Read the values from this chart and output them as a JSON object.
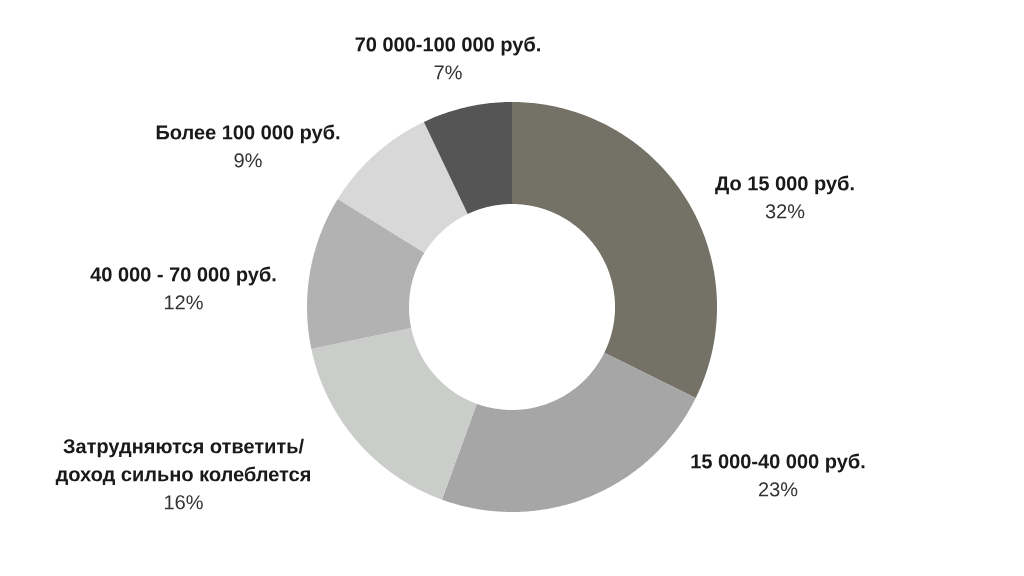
{
  "chart_data": {
    "type": "donut",
    "categories": [
      "До 15 000 руб.",
      "15 000-40 000 руб.",
      "Затрудняются ответить/ доход сильно колеблется",
      "40 000 - 70 000 руб.",
      "Более 100 000 руб.",
      "70 000-100 000 руб."
    ],
    "values": [
      32,
      23,
      16,
      12,
      9,
      7
    ],
    "colors": [
      "#747166",
      "#a6a6a6",
      "#cbcdcb",
      "#b2b2b2",
      "#d8d8d8",
      "#555555"
    ],
    "value_labels": [
      "32%",
      "23%",
      "16%",
      "12%",
      "9%",
      "7%"
    ]
  }
}
